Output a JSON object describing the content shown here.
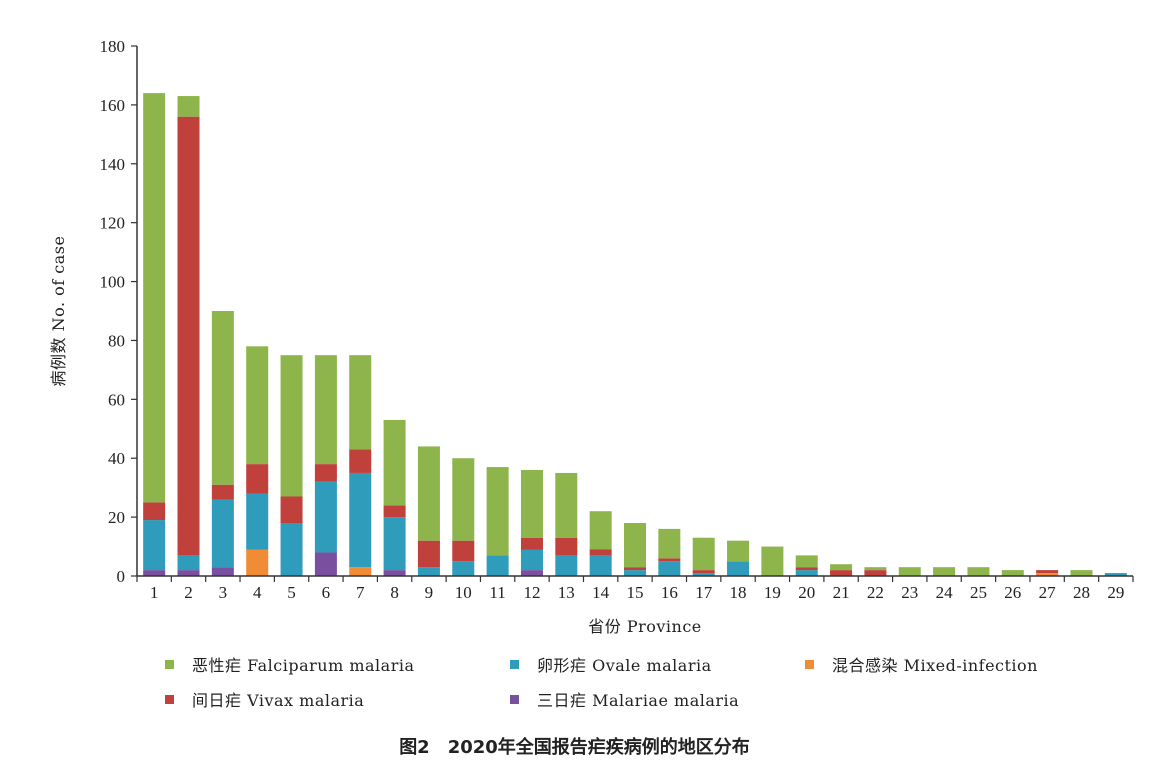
{
  "chart_data": {
    "type": "bar",
    "stacked": true,
    "xlabel": "省份 Province",
    "ylabel": "病例数 No. of case",
    "ylim": [
      0,
      180
    ],
    "yticks": [
      0,
      20,
      40,
      60,
      80,
      100,
      120,
      140,
      160,
      180
    ],
    "grid": false,
    "legend_position": "bottom",
    "categories": [
      "1",
      "2",
      "3",
      "4",
      "5",
      "6",
      "7",
      "8",
      "9",
      "10",
      "11",
      "12",
      "13",
      "14",
      "15",
      "16",
      "17",
      "18",
      "19",
      "20",
      "21",
      "22",
      "23",
      "24",
      "25",
      "26",
      "27",
      "28",
      "29"
    ],
    "series": [
      {
        "name": "三日疟 Malariae malaria",
        "color": "#7b4fa0",
        "values": [
          2,
          2,
          3,
          0,
          0,
          8,
          0,
          2,
          0,
          0,
          0,
          2,
          0,
          0,
          0,
          0,
          0,
          0,
          0,
          0,
          0,
          0,
          0,
          0,
          0,
          0,
          0,
          0,
          0
        ]
      },
      {
        "name": "混合感染 Mixed-infection",
        "color": "#f08c35",
        "values": [
          0,
          0,
          0,
          9,
          0,
          0,
          3,
          0,
          0,
          0,
          0,
          0,
          0,
          0,
          0,
          0,
          0,
          0,
          0,
          0,
          0,
          0,
          0,
          0,
          0,
          0,
          1,
          0,
          0
        ]
      },
      {
        "name": "卵形疟 Ovale malaria",
        "color": "#2e9cba",
        "values": [
          17,
          5,
          23,
          19,
          18,
          24,
          32,
          18,
          3,
          5,
          7,
          7,
          7,
          7,
          2,
          5,
          1,
          5,
          0,
          2,
          0,
          0,
          0,
          0,
          0,
          0,
          0,
          0,
          1
        ]
      },
      {
        "name": "间日疟 Vivax malaria",
        "color": "#c0403c",
        "values": [
          6,
          149,
          5,
          10,
          9,
          6,
          8,
          4,
          9,
          7,
          0,
          4,
          6,
          2,
          1,
          1,
          1,
          0,
          0,
          1,
          2,
          2,
          0,
          0,
          0,
          0,
          1,
          0,
          0
        ]
      },
      {
        "name": "恶性疟 Falciparum malaria",
        "color": "#8db54b",
        "values": [
          139,
          7,
          59,
          40,
          48,
          37,
          32,
          29,
          32,
          28,
          30,
          23,
          22,
          13,
          15,
          10,
          11,
          7,
          10,
          4,
          2,
          1,
          3,
          3,
          3,
          2,
          0,
          2,
          0
        ]
      }
    ]
  },
  "legend": [
    {
      "label": "恶性疟 Falciparum malaria",
      "color": "#8db54b"
    },
    {
      "label": "卵形疟 Ovale malaria",
      "color": "#2e9cba"
    },
    {
      "label": "混合感染 Mixed-infection",
      "color": "#f08c35"
    },
    {
      "label": "间日疟 Vivax malaria",
      "color": "#c0403c"
    },
    {
      "label": "三日疟 Malariae malaria",
      "color": "#7b4fa0"
    }
  ],
  "caption": "图2　2020年全国报告疟疾病例的地区分布"
}
